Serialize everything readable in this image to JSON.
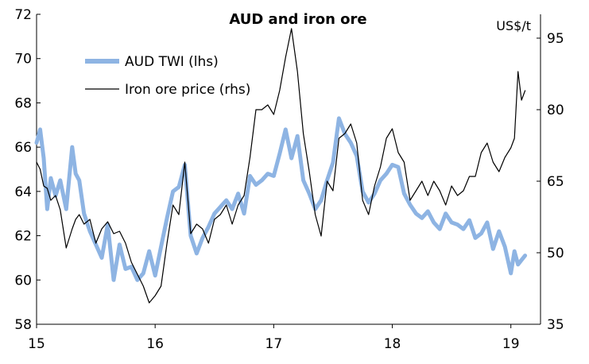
{
  "chart_data": {
    "type": "line",
    "title": "AUD and iron ore",
    "right_unit": "US$/t",
    "x_ticks": [
      "15",
      "16",
      "17",
      "18",
      "19"
    ],
    "x_range": [
      15.0,
      19.25
    ],
    "left_axis": {
      "ticks": [
        "58",
        "60",
        "62",
        "64",
        "66",
        "68",
        "70",
        "72"
      ],
      "range": [
        58,
        72
      ]
    },
    "right_axis": {
      "ticks": [
        "35",
        "50",
        "65",
        "80",
        "95"
      ],
      "range": [
        35,
        100
      ]
    },
    "legend": [
      "AUD TWI (lhs)",
      "Iron ore price (rhs)"
    ],
    "series": [
      {
        "name": "AUD TWI (lhs)",
        "axis": "left",
        "color": "#8eb4e3",
        "x": [
          15.0,
          15.03,
          15.06,
          15.09,
          15.12,
          15.16,
          15.2,
          15.25,
          15.3,
          15.33,
          15.36,
          15.4,
          15.45,
          15.5,
          15.55,
          15.6,
          15.65,
          15.7,
          15.75,
          15.8,
          15.85,
          15.9,
          15.95,
          16.0,
          16.05,
          16.1,
          16.15,
          16.2,
          16.25,
          16.3,
          16.35,
          16.4,
          16.45,
          16.5,
          16.55,
          16.6,
          16.65,
          16.7,
          16.75,
          16.8,
          16.85,
          16.9,
          16.95,
          17.0,
          17.05,
          17.1,
          17.15,
          17.2,
          17.25,
          17.3,
          17.35,
          17.4,
          17.45,
          17.5,
          17.55,
          17.6,
          17.65,
          17.7,
          17.75,
          17.8,
          17.85,
          17.9,
          17.95,
          18.0,
          18.05,
          18.1,
          18.15,
          18.2,
          18.25,
          18.3,
          18.35,
          18.4,
          18.45,
          18.5,
          18.55,
          18.6,
          18.65,
          18.7,
          18.75,
          18.8,
          18.85,
          18.9,
          18.95,
          19.0,
          19.03,
          19.06,
          19.09,
          19.12
        ],
        "values": [
          66.2,
          66.8,
          65.5,
          63.2,
          64.6,
          63.8,
          64.5,
          63.2,
          66.0,
          64.8,
          64.5,
          63.0,
          62.2,
          61.6,
          61.0,
          62.5,
          60.0,
          61.6,
          60.5,
          60.6,
          60.0,
          60.3,
          61.3,
          60.2,
          61.5,
          62.8,
          64.0,
          64.2,
          65.2,
          62.0,
          61.2,
          61.9,
          62.4,
          63.0,
          63.3,
          63.6,
          63.2,
          63.9,
          63.0,
          64.7,
          64.3,
          64.5,
          64.8,
          64.7,
          65.7,
          66.8,
          65.5,
          66.5,
          64.5,
          63.9,
          63.2,
          63.6,
          64.5,
          65.3,
          67.3,
          66.6,
          66.2,
          65.6,
          64.0,
          63.5,
          63.9,
          64.5,
          64.8,
          65.2,
          65.1,
          63.9,
          63.4,
          63.0,
          62.8,
          63.1,
          62.6,
          62.3,
          63.0,
          62.6,
          62.5,
          62.3,
          62.7,
          61.9,
          62.1,
          62.6,
          61.4,
          62.2,
          61.5,
          60.3,
          61.3,
          60.7,
          60.9,
          61.1
        ]
      },
      {
        "name": "Iron ore price (rhs)",
        "axis": "right",
        "color": "#000000",
        "x": [
          15.0,
          15.03,
          15.06,
          15.09,
          15.12,
          15.16,
          15.2,
          15.25,
          15.3,
          15.33,
          15.36,
          15.4,
          15.45,
          15.5,
          15.55,
          15.6,
          15.65,
          15.7,
          15.75,
          15.8,
          15.85,
          15.9,
          15.95,
          16.0,
          16.05,
          16.1,
          16.15,
          16.2,
          16.25,
          16.3,
          16.35,
          16.4,
          16.45,
          16.5,
          16.55,
          16.6,
          16.65,
          16.7,
          16.75,
          16.8,
          16.85,
          16.9,
          16.95,
          17.0,
          17.05,
          17.1,
          17.15,
          17.2,
          17.25,
          17.3,
          17.35,
          17.4,
          17.45,
          17.5,
          17.55,
          17.6,
          17.65,
          17.7,
          17.75,
          17.8,
          17.85,
          17.9,
          17.95,
          18.0,
          18.05,
          18.1,
          18.15,
          18.2,
          18.25,
          18.3,
          18.35,
          18.4,
          18.45,
          18.5,
          18.55,
          18.6,
          18.65,
          18.7,
          18.75,
          18.8,
          18.85,
          18.9,
          18.95,
          19.0,
          19.03,
          19.06,
          19.09,
          19.12
        ],
        "values": [
          69.0,
          67.5,
          64.0,
          63.5,
          61.0,
          62.0,
          59.0,
          51.0,
          55.0,
          57.0,
          58.0,
          56.0,
          57.0,
          52.0,
          55.0,
          56.5,
          54.0,
          54.5,
          52.0,
          48.0,
          45.5,
          43.0,
          39.5,
          41.0,
          43.0,
          52.0,
          60.0,
          58.0,
          69.0,
          54.0,
          56.0,
          55.0,
          52.0,
          57.0,
          58.0,
          60.0,
          56.0,
          60.0,
          62.0,
          70.0,
          80.0,
          80.0,
          81.0,
          79.0,
          84.0,
          91.0,
          97.0,
          88.0,
          75.0,
          67.0,
          58.0,
          53.5,
          65.0,
          63.0,
          74.0,
          75.0,
          77.0,
          73.0,
          61.0,
          58.0,
          64.0,
          68.0,
          74.0,
          76.0,
          71.0,
          69.0,
          61.0,
          63.0,
          65.0,
          62.0,
          65.0,
          63.0,
          60.0,
          64.0,
          62.0,
          63.0,
          66.0,
          66.0,
          71.0,
          73.0,
          69.0,
          67.0,
          70.0,
          72.0,
          74.0,
          88.0,
          82.0,
          84.0
        ]
      }
    ]
  }
}
